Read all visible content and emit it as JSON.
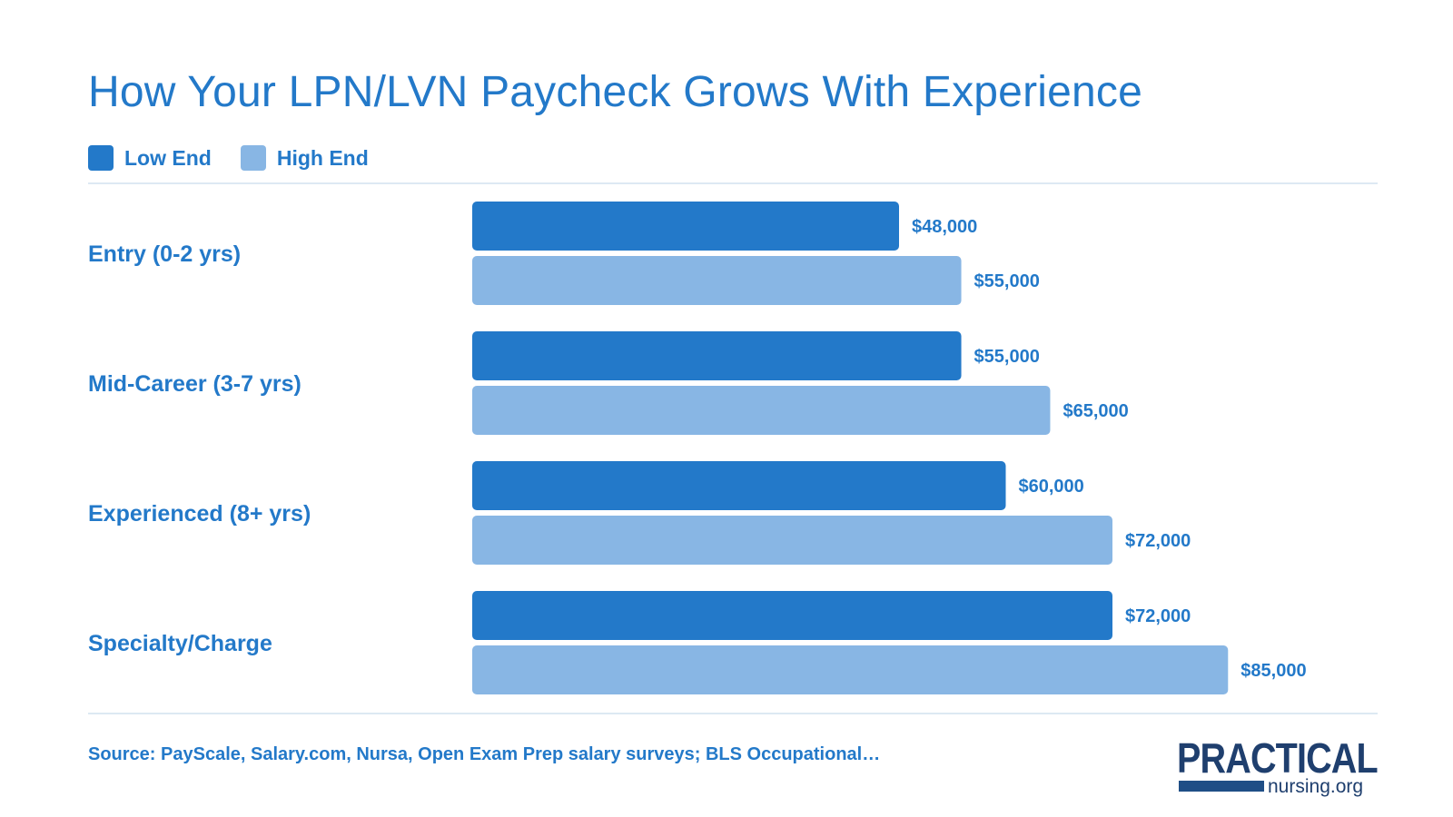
{
  "title": "How Your LPN/LVN Paycheck Grows With Experience",
  "colors": {
    "low": "#2379c9",
    "high": "#88b6e4",
    "text": "#2379c9"
  },
  "legend": [
    {
      "label": "Low End",
      "color": "#2379c9"
    },
    {
      "label": "High End",
      "color": "#88b6e4"
    }
  ],
  "chart_data": {
    "type": "bar",
    "orientation": "horizontal",
    "title": "How Your LPN/LVN Paycheck Grows With Experience",
    "categories": [
      "Entry (0-2 yrs)",
      "Mid-Career (3-7 yrs)",
      "Experienced (8+ yrs)",
      "Specialty/Charge"
    ],
    "series": [
      {
        "name": "Low End",
        "values": [
          48000,
          55000,
          60000,
          72000
        ],
        "labels": [
          "$48,000",
          "$55,000",
          "$60,000",
          "$72,000"
        ]
      },
      {
        "name": "High End",
        "values": [
          55000,
          65000,
          72000,
          85000
        ],
        "labels": [
          "$55,000",
          "$65,000",
          "$72,000",
          "$85,000"
        ]
      }
    ],
    "legend_position": "top-left",
    "grid": false
  },
  "source": "Source: PayScale, Salary.com, Nursa, Open Exam Prep salary surveys; BLS Occupational…",
  "logo": {
    "main": "PRACTICAL",
    "sub": "nursing.org"
  }
}
